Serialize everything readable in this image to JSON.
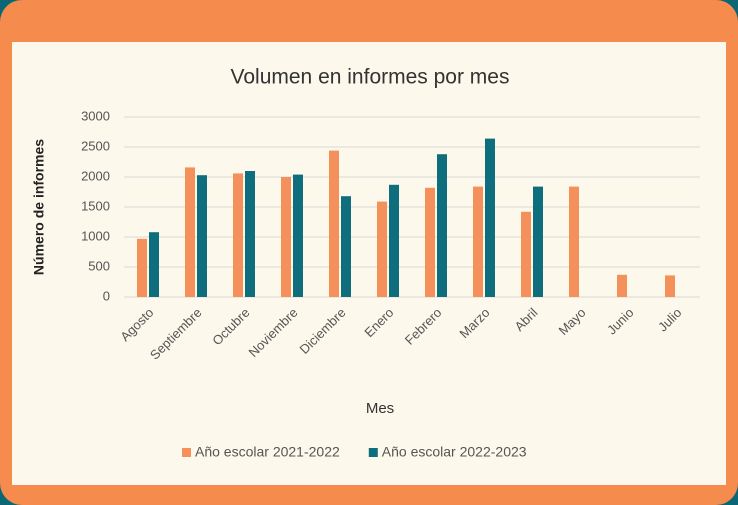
{
  "chart_data": {
    "type": "bar",
    "title": "Volumen en informes por mes",
    "x_label": "Mes",
    "y_label": "Número de informes",
    "categories": [
      "Agosto",
      "Septiembre",
      "Octubre",
      "Noviembre",
      "Diciembre",
      "Enero",
      "Febrero",
      "Marzo",
      "Abril",
      "Mayo",
      "Junio",
      "Julio"
    ],
    "series": [
      {
        "name": "Año escolar 2021-2022",
        "color": "#f4915a",
        "values": [
          970,
          2160,
          2060,
          2000,
          2440,
          1590,
          1820,
          1840,
          1420,
          1840,
          370,
          360
        ]
      },
      {
        "name": "Año escolar 2022-2023",
        "color": "#0e6e7e",
        "values": [
          1080,
          2030,
          2100,
          2040,
          1680,
          1870,
          2380,
          2640,
          1840,
          null,
          null,
          null
        ]
      }
    ],
    "ylim": [
      0,
      3000
    ],
    "yticks": [
      0,
      500,
      1000,
      1500,
      2000,
      2500,
      3000
    ],
    "grid": true,
    "legend": "bottom"
  }
}
